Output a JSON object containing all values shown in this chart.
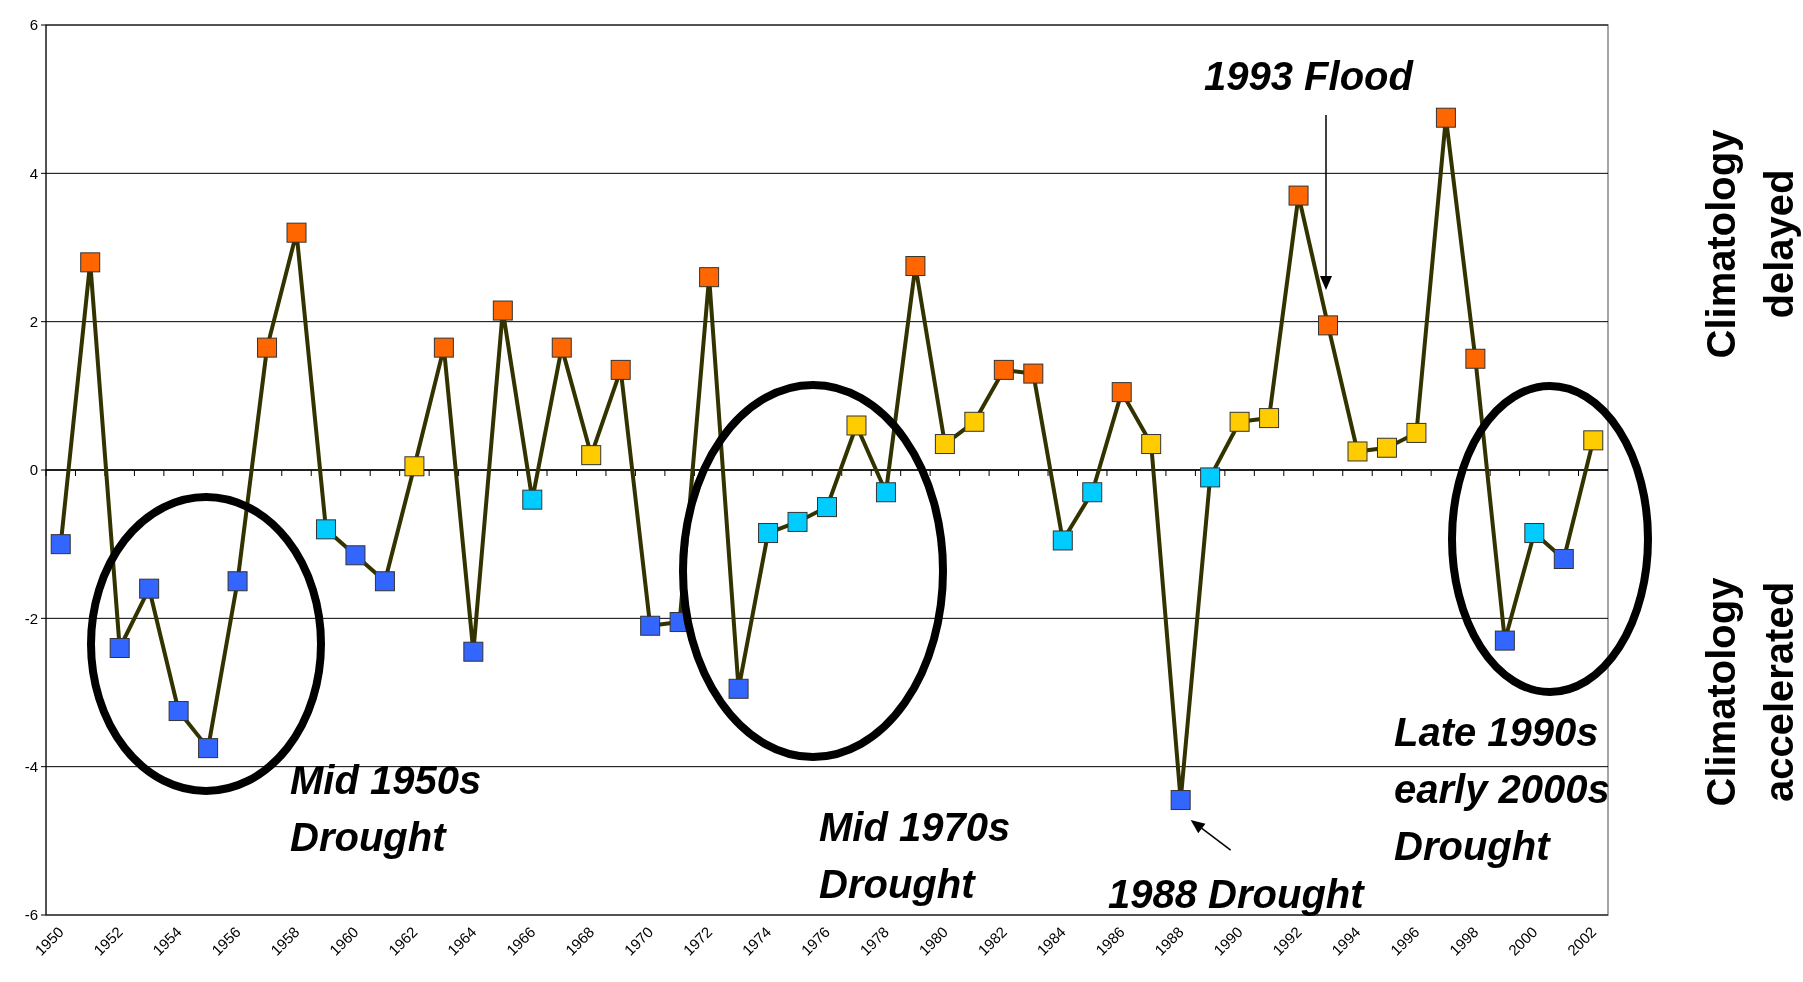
{
  "chart_data": {
    "type": "line",
    "categories": [
      "1950",
      null,
      "1952",
      null,
      "1954",
      null,
      "1956",
      null,
      "1958",
      null,
      "1960",
      null,
      "1962",
      null,
      "1964",
      null,
      "1966",
      null,
      "1968",
      null,
      "1970",
      null,
      "1972",
      null,
      "1974",
      null,
      "1976",
      null,
      "1978",
      null,
      "1980",
      null,
      "1982",
      null,
      "1984",
      null,
      "1986",
      null,
      "1988",
      null,
      "1990",
      null,
      "1992",
      null,
      "1994",
      null,
      "1996",
      null,
      "1998",
      null,
      "2000",
      null,
      "2002"
    ],
    "series": [
      {
        "color": "#333300",
        "values": [
          -1.0,
          2.8,
          -2.4,
          -1.6,
          -3.25,
          -3.75,
          -1.5,
          1.65,
          3.2,
          -0.8,
          -1.15,
          -1.5,
          0.05,
          1.65,
          -2.45,
          2.15,
          -0.4,
          1.65,
          0.2,
          1.35,
          -2.1,
          -2.05,
          2.6,
          -2.95,
          -0.85,
          -0.7,
          -0.5,
          0.6,
          -0.3,
          2.75,
          0.35,
          0.65,
          1.35,
          1.3,
          -0.95,
          -0.3,
          1.05,
          0.35,
          -4.45,
          -0.1,
          0.65,
          0.7,
          3.7,
          1.95,
          0.25,
          0.3,
          0.5,
          4.75,
          1.5,
          -2.3,
          -0.85,
          -1.2,
          0.4
        ],
        "colors": [
          "#3366ff",
          "#ff6600",
          "#3366ff",
          "#3366ff",
          "#3366ff",
          "#3366ff",
          "#3366ff",
          "#ff6600",
          "#ff6600",
          "#00ccff",
          "#3366ff",
          "#3366ff",
          "#ffcc00",
          "#ff6600",
          "#3366ff",
          "#ff6600",
          "#00ccff",
          "#ff6600",
          "#ffcc00",
          "#ff6600",
          "#3366ff",
          "#3366ff",
          "#ff6600",
          "#3366ff",
          "#00ccff",
          "#00ccff",
          "#00ccff",
          "#ffcc00",
          "#00ccff",
          "#ff6600",
          "#ffcc00",
          "#ffcc00",
          "#ff6600",
          "#ff6600",
          "#00ccff",
          "#00ccff",
          "#ff6600",
          "#ffcc00",
          "#3366ff",
          "#00ccff",
          "#ffcc00",
          "#ffcc00",
          "#ff6600",
          "#ff6600",
          "#ffcc00",
          "#ffcc00",
          "#ffcc00",
          "#ff6600",
          "#ff6600",
          "#3366ff",
          "#00ccff",
          "#3366ff",
          "#ffcc00"
        ]
      }
    ],
    "ylim": [
      -6,
      6
    ],
    "yticks": [
      -6,
      -4,
      -2,
      0,
      2,
      4,
      6
    ],
    "grid": "y",
    "marker": "square",
    "line_style": "solid",
    "annotations": [
      "Mid 1950s\nDrought",
      "Mid 1970s\nDrought",
      {
        "text": "1988 Drought",
        "x": "1988",
        "y": -4.45
      },
      "1993 Flood",
      "Late 1990s\nearly 2000s\nDrought",
      "Climatology\ndelayed",
      "Climatology\naccelerated"
    ]
  }
}
